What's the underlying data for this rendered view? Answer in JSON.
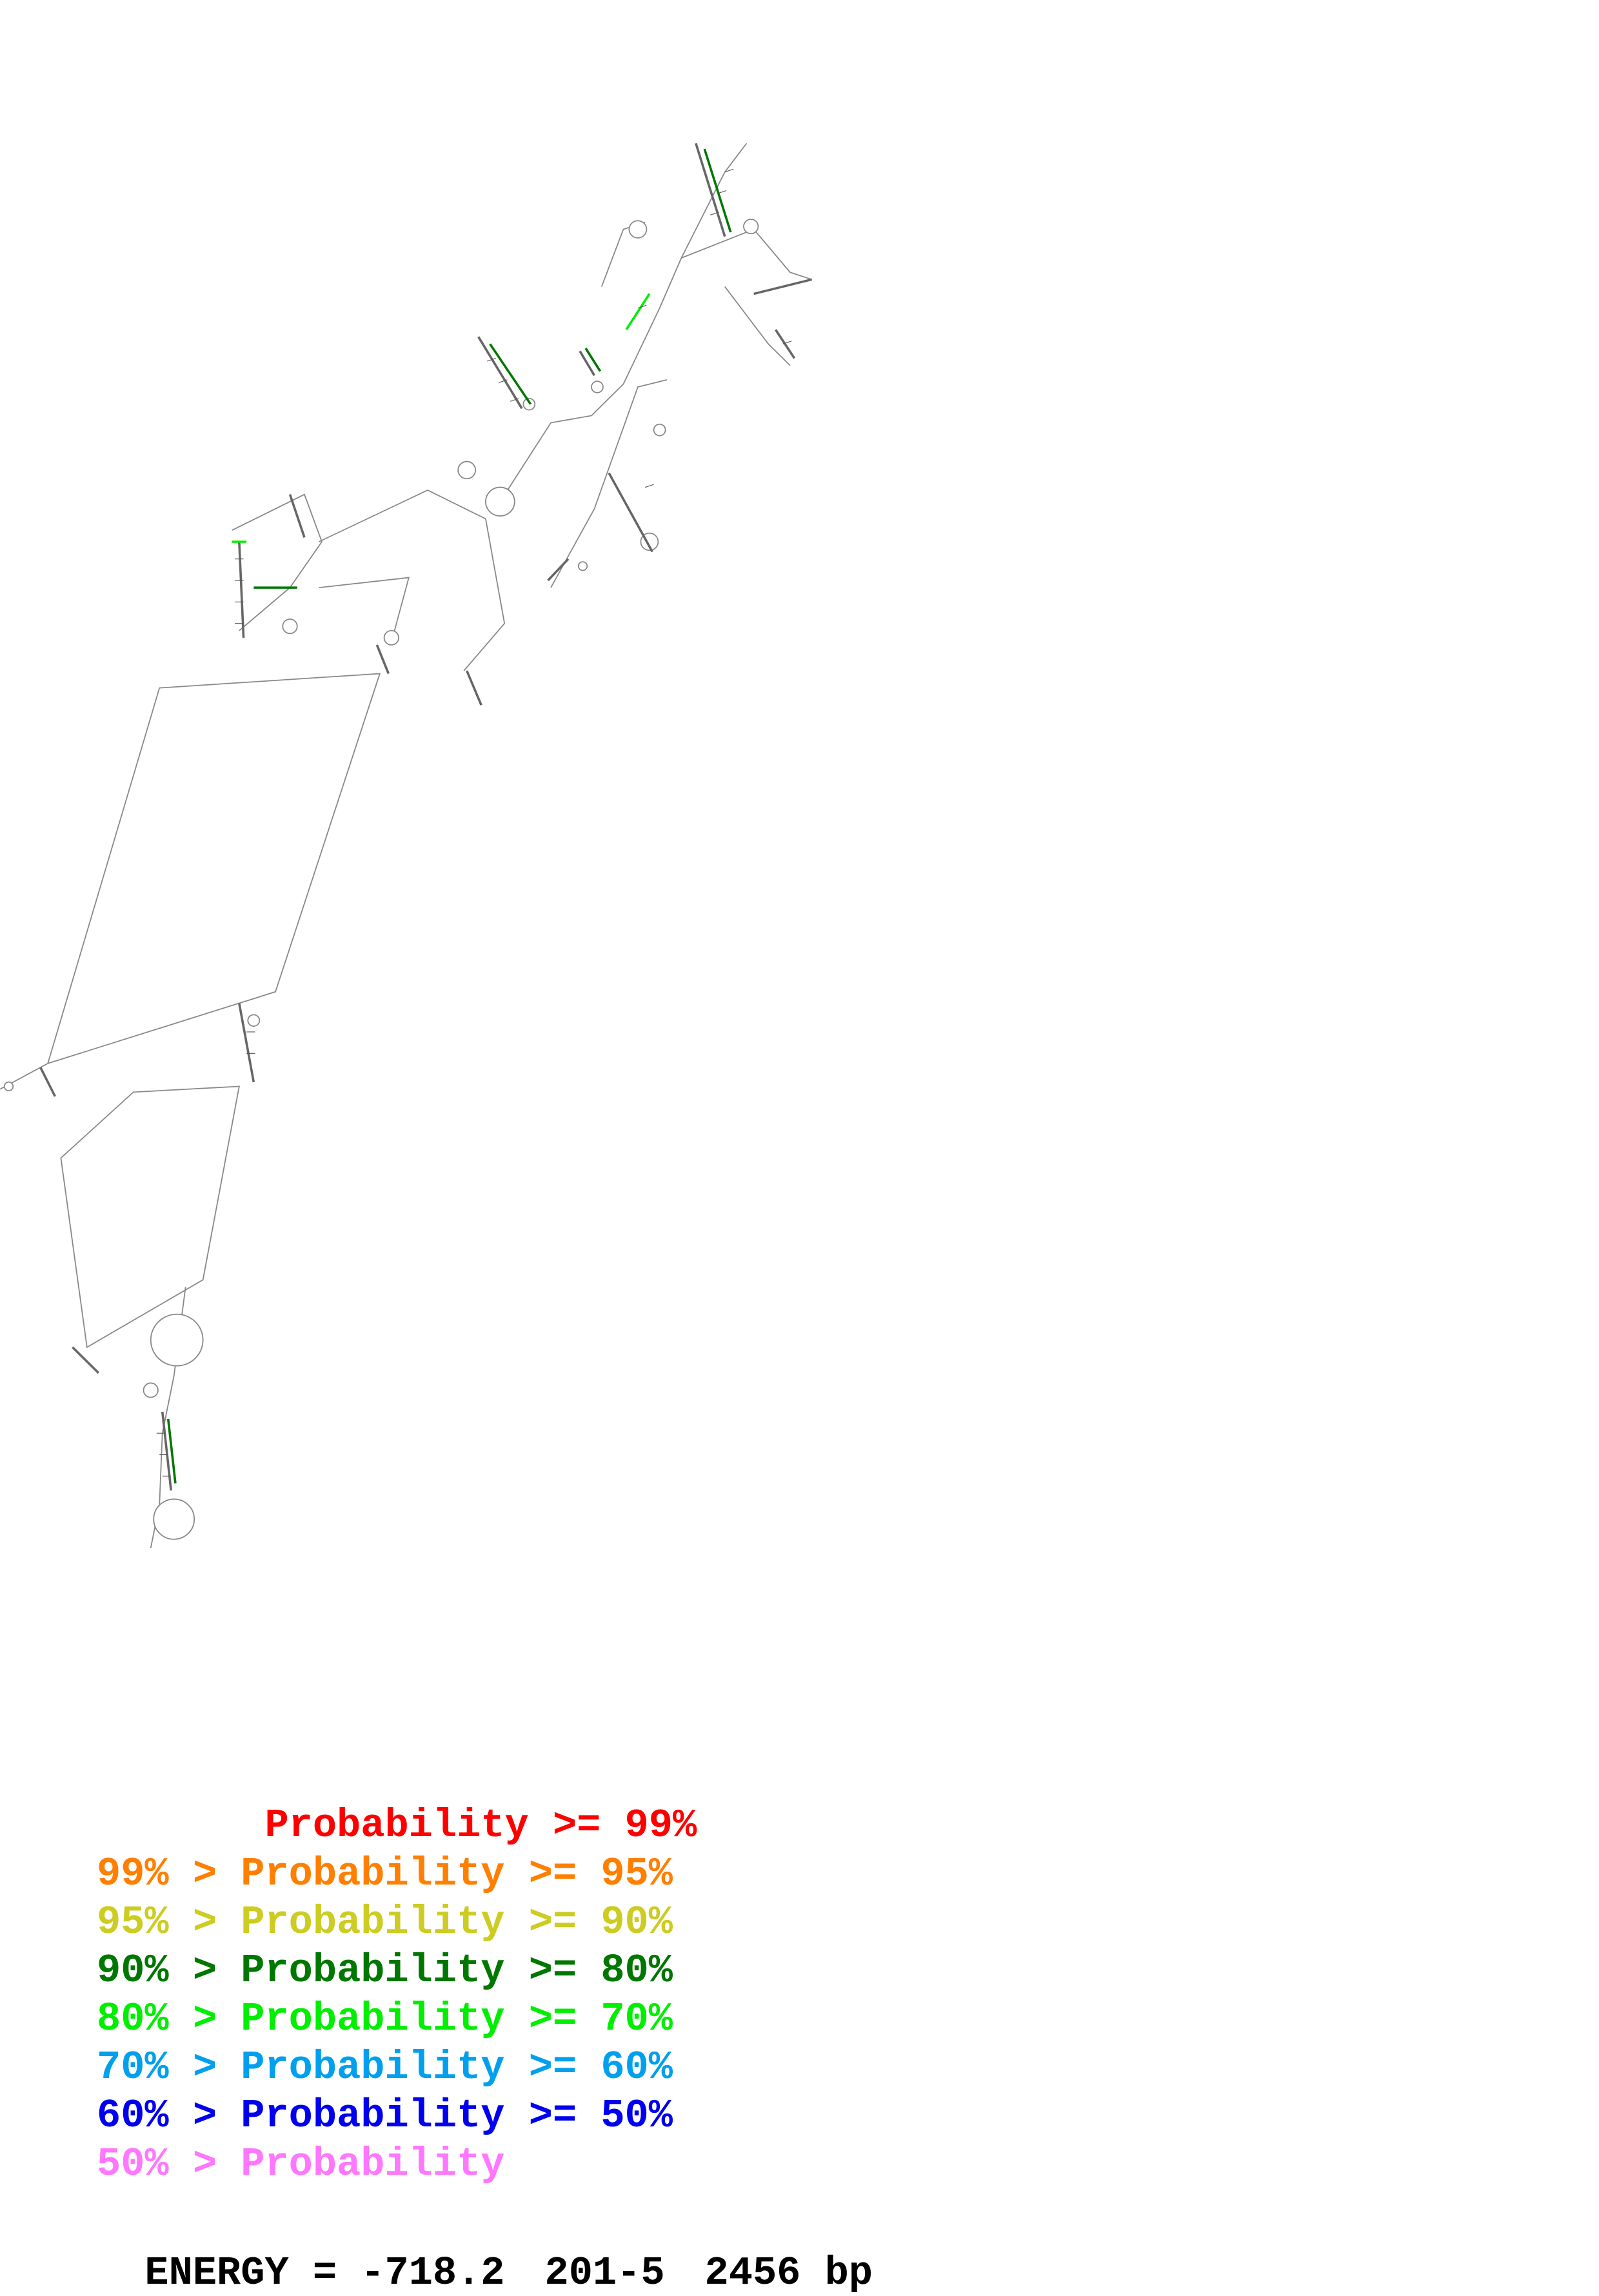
{
  "legend": [
    {
      "text": "       Probability >= 99%",
      "color": "#ff0000"
    },
    {
      "text": "99% > Probability >= 95%",
      "color": "#ff7f00"
    },
    {
      "text": "95% > Probability >= 90%",
      "color": "#cccc22"
    },
    {
      "text": "90% > Probability >= 80%",
      "color": "#007700"
    },
    {
      "text": "80% > Probability >= 70%",
      "color": "#00ee00"
    },
    {
      "text": "70% > Probability >= 60%",
      "color": "#00a0ee"
    },
    {
      "text": "60% > Probability >= 50%",
      "color": "#0000ee"
    },
    {
      "text": "50% > Probability",
      "color": "#ff77ff"
    }
  ],
  "footer": {
    "energy": "ENERGY = -718.2",
    "name": "201-5",
    "length": "2456 bp"
  },
  "colors": {
    "backbone": "#888888",
    "base_mark": "#555555"
  }
}
